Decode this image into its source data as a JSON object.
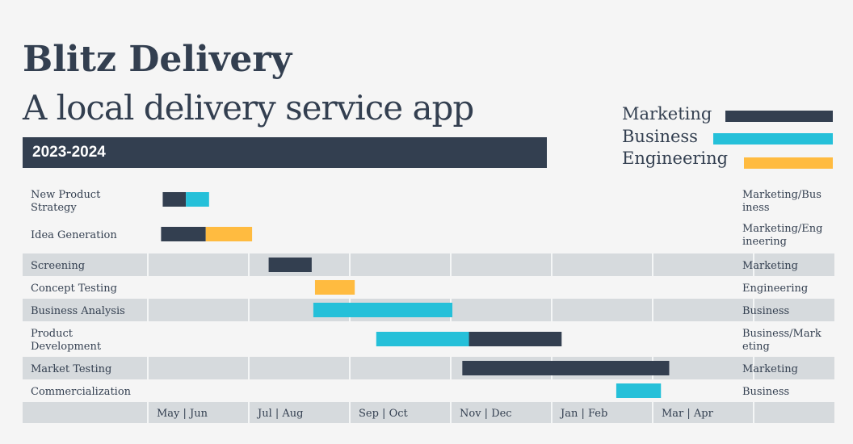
{
  "header": {
    "title": "Blitz Delivery",
    "subtitle": "A local delivery service app",
    "year": "2023-2024"
  },
  "legend": [
    {
      "label": "Marketing",
      "color": "#333f50"
    },
    {
      "label": "Business",
      "color": "#25c0d9"
    },
    {
      "label": "Engineering",
      "color": "#ffbb40"
    }
  ],
  "colors": {
    "Marketing": "#333f50",
    "Business": "#25c0d9",
    "Engineering": "#ffbb40",
    "band": "#d6dadd",
    "background": "#f5f5f5"
  },
  "chart_data": {
    "type": "gantt",
    "x_axis": {
      "categories": [
        "May | Jun",
        "Jul | Aug",
        "Sep | Oct",
        "Nov | Dec",
        "Jan | Feb",
        "Mar | Apr"
      ],
      "range": [
        "2023-05-01",
        "2024-05-01"
      ]
    },
    "tasks": [
      {
        "name": "New Product Strategy",
        "label_lines": [
          "New Product",
          "Strategy"
        ],
        "team": "Marketing/Business",
        "team_lines": [
          "Marketing/Bus",
          "iness"
        ],
        "banded": false,
        "segments": [
          {
            "team": "Marketing",
            "start": "2023-05-10",
            "end": "2023-05-24"
          },
          {
            "team": "Business",
            "start": "2023-05-24",
            "end": "2023-06-07"
          }
        ]
      },
      {
        "name": "Idea Generation",
        "label_lines": [
          "Idea Generation"
        ],
        "team": "Marketing/Engineering",
        "team_lines": [
          "Marketing/Eng",
          "ineering"
        ],
        "banded": false,
        "segments": [
          {
            "team": "Marketing",
            "start": "2023-05-09",
            "end": "2023-06-05"
          },
          {
            "team": "Engineering",
            "start": "2023-06-05",
            "end": "2023-07-03"
          }
        ]
      },
      {
        "name": "Screening",
        "label_lines": [
          "Screening"
        ],
        "team": "Marketing",
        "team_lines": [
          "Marketing"
        ],
        "banded": true,
        "segments": [
          {
            "team": "Marketing",
            "start": "2023-07-13",
            "end": "2023-08-08"
          }
        ]
      },
      {
        "name": "Concept Testing",
        "label_lines": [
          "Concept Testing"
        ],
        "team": "Engineering",
        "team_lines": [
          "Engineering"
        ],
        "banded": false,
        "segments": [
          {
            "team": "Engineering",
            "start": "2023-08-10",
            "end": "2023-09-03"
          }
        ]
      },
      {
        "name": "Business Analysis",
        "label_lines": [
          "Business Analysis"
        ],
        "team": "Business",
        "team_lines": [
          "Business"
        ],
        "banded": true,
        "segments": [
          {
            "team": "Business",
            "start": "2023-08-09",
            "end": "2023-11-01"
          }
        ]
      },
      {
        "name": "Product Development",
        "label_lines": [
          "Product",
          "Development"
        ],
        "team": "Business/Marketing",
        "team_lines": [
          "Business/Mark",
          "eting"
        ],
        "banded": false,
        "segments": [
          {
            "team": "Business",
            "start": "2023-09-16",
            "end": "2023-11-11"
          },
          {
            "team": "Marketing",
            "start": "2023-11-11",
            "end": "2024-01-06"
          }
        ]
      },
      {
        "name": "Market Testing",
        "label_lines": [
          "Market Testing"
        ],
        "team": "Marketing",
        "team_lines": [
          "Marketing"
        ],
        "banded": true,
        "segments": [
          {
            "team": "Marketing",
            "start": "2023-11-07",
            "end": "2024-03-11"
          }
        ]
      },
      {
        "name": "Commercialization",
        "label_lines": [
          "Commercialization"
        ],
        "team": "Business",
        "team_lines": [
          "Business"
        ],
        "banded": false,
        "segments": [
          {
            "team": "Business",
            "start": "2024-02-08",
            "end": "2024-03-06"
          }
        ]
      }
    ]
  }
}
